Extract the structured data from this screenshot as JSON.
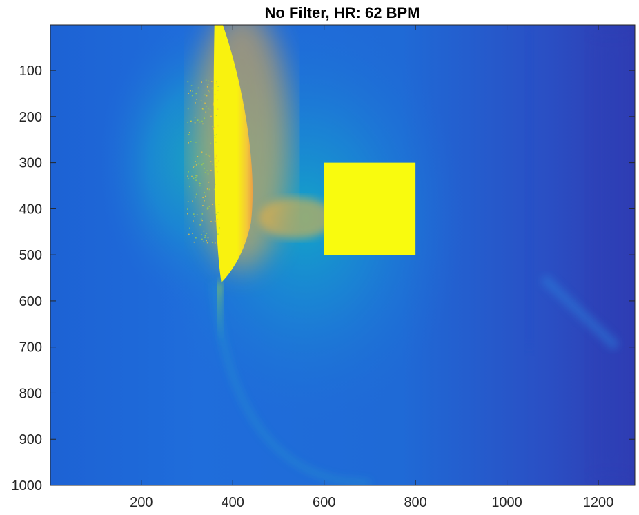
{
  "chart_data": {
    "type": "heatmap",
    "title": "No Filter, HR: 62 BPM",
    "xlabel": "",
    "ylabel": "",
    "colormap": "parula",
    "colors": {
      "background_low": "#2e3fb8",
      "background_mid": "#1f6fd8",
      "glow_mid": "#14a3c8",
      "hot": "#f9f20f",
      "warm": "#f7b23a",
      "roi": "#f9fb0e"
    },
    "x_range": [
      1,
      1280
    ],
    "y_range": [
      1,
      1000
    ],
    "y_reversed": true,
    "x_ticks": [
      200,
      400,
      600,
      800,
      1000,
      1200
    ],
    "x_tick_labels": [
      "200",
      "400",
      "600",
      "800",
      "1000",
      "1200"
    ],
    "y_ticks": [
      100,
      200,
      300,
      400,
      500,
      600,
      700,
      800,
      900,
      1000
    ],
    "y_tick_labels": [
      "100",
      "200",
      "300",
      "400",
      "500",
      "600",
      "700",
      "800",
      "900",
      "1000"
    ],
    "roi_box": {
      "x": [
        600,
        800
      ],
      "y": [
        300,
        500
      ],
      "label": ""
    },
    "bright_band": {
      "x_center": 400,
      "y_range": [
        0,
        560
      ],
      "description_value": "high intensity"
    }
  }
}
